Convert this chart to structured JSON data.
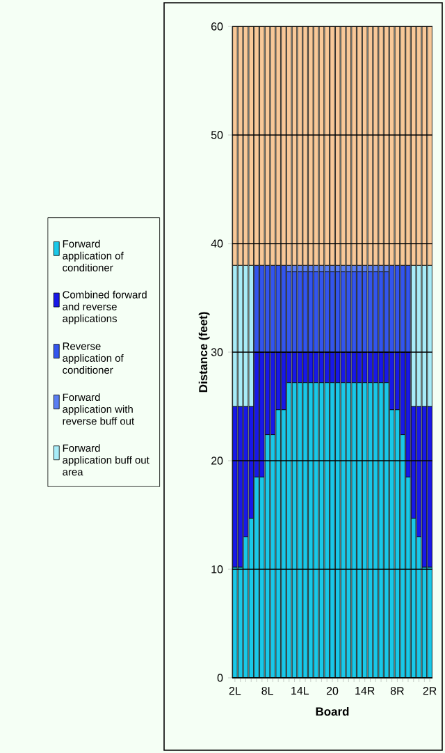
{
  "chart_data": {
    "type": "bar",
    "stacked": true,
    "xlabel": "Board",
    "ylabel": "Distance (feet)",
    "categories": [
      "2L",
      null,
      null,
      null,
      null,
      null,
      "8L",
      null,
      null,
      null,
      null,
      null,
      "14L",
      null,
      null,
      null,
      null,
      null,
      "20",
      null,
      null,
      null,
      null,
      null,
      "14R",
      null,
      null,
      null,
      null,
      null,
      "8R",
      null,
      null,
      null,
      null,
      null,
      "2R"
    ],
    "ylim": [
      0,
      60
    ],
    "yticks": [
      0,
      10,
      20,
      30,
      40,
      50,
      60
    ],
    "grid": "y",
    "legend": "left",
    "series": [
      {
        "name": "Forward application of conditioner",
        "color": "#19c8e8",
        "values": [
          10.2,
          10.2,
          13,
          14.7,
          18.5,
          18.5,
          22.4,
          22.4,
          24.7,
          24.7,
          27.2,
          27.2,
          27.2,
          27.2,
          27.2,
          27.2,
          27.2,
          27.2,
          27.2,
          27.2,
          27.2,
          27.2,
          27.2,
          27.2,
          27.2,
          27.2,
          27.2,
          27.2,
          27.2,
          24.7,
          24.7,
          22.4,
          18.5,
          14.7,
          13,
          10.2,
          10.2
        ]
      },
      {
        "name": "Combined forward and reverse applications",
        "color": "#1818e8",
        "values": [
          14.8,
          14.8,
          12,
          10.3,
          11.5,
          11.5,
          7.6,
          7.6,
          5.3,
          5.3,
          2.8,
          2.8,
          2.8,
          2.8,
          2.8,
          2.8,
          2.8,
          2.8,
          2.8,
          2.8,
          2.8,
          2.8,
          2.8,
          2.8,
          2.8,
          2.8,
          2.8,
          2.8,
          2.8,
          5.3,
          5.3,
          7.6,
          11.5,
          10.3,
          12,
          14.8,
          14.8
        ]
      },
      {
        "name": "Reverse application of conditioner",
        "color": "#3355ee",
        "values": [
          null,
          null,
          null,
          null,
          8,
          8,
          8,
          8,
          8,
          8,
          7.4,
          7.4,
          7.4,
          7.4,
          7.4,
          7.4,
          7.4,
          7.4,
          7.4,
          7.4,
          7.4,
          7.4,
          7.4,
          7.4,
          7.4,
          7.4,
          7.4,
          7.4,
          7.4,
          8,
          8,
          8,
          8,
          null,
          null,
          null,
          null
        ]
      },
      {
        "name": "Forward application with reverse buff out",
        "color": "#5a7ef2",
        "values": [
          null,
          null,
          null,
          null,
          null,
          null,
          null,
          null,
          null,
          null,
          0.6,
          0.6,
          0.6,
          0.6,
          0.6,
          0.6,
          0.6,
          0.6,
          0.6,
          0.6,
          0.6,
          0.6,
          0.6,
          0.6,
          0.6,
          0.6,
          0.6,
          0.6,
          0.6,
          null,
          null,
          null,
          null,
          null,
          null,
          null,
          null
        ]
      },
      {
        "name": "Forward application buff out area",
        "color": "#a8ecf8",
        "values": [
          13,
          13,
          13,
          13,
          null,
          null,
          null,
          null,
          null,
          null,
          null,
          null,
          null,
          null,
          null,
          null,
          null,
          null,
          null,
          null,
          null,
          null,
          null,
          null,
          null,
          null,
          null,
          null,
          null,
          null,
          null,
          null,
          null,
          13,
          13,
          13,
          13
        ]
      },
      {
        "color": "#f8c898",
        "values": [
          22,
          22,
          22,
          22,
          22,
          22,
          22,
          22,
          22,
          22,
          22,
          22,
          22,
          22,
          22,
          22,
          22,
          22,
          22,
          22,
          22,
          22,
          22,
          22,
          22,
          22,
          22,
          22,
          22,
          22,
          22,
          22,
          22,
          22,
          22,
          22,
          22
        ]
      }
    ]
  }
}
